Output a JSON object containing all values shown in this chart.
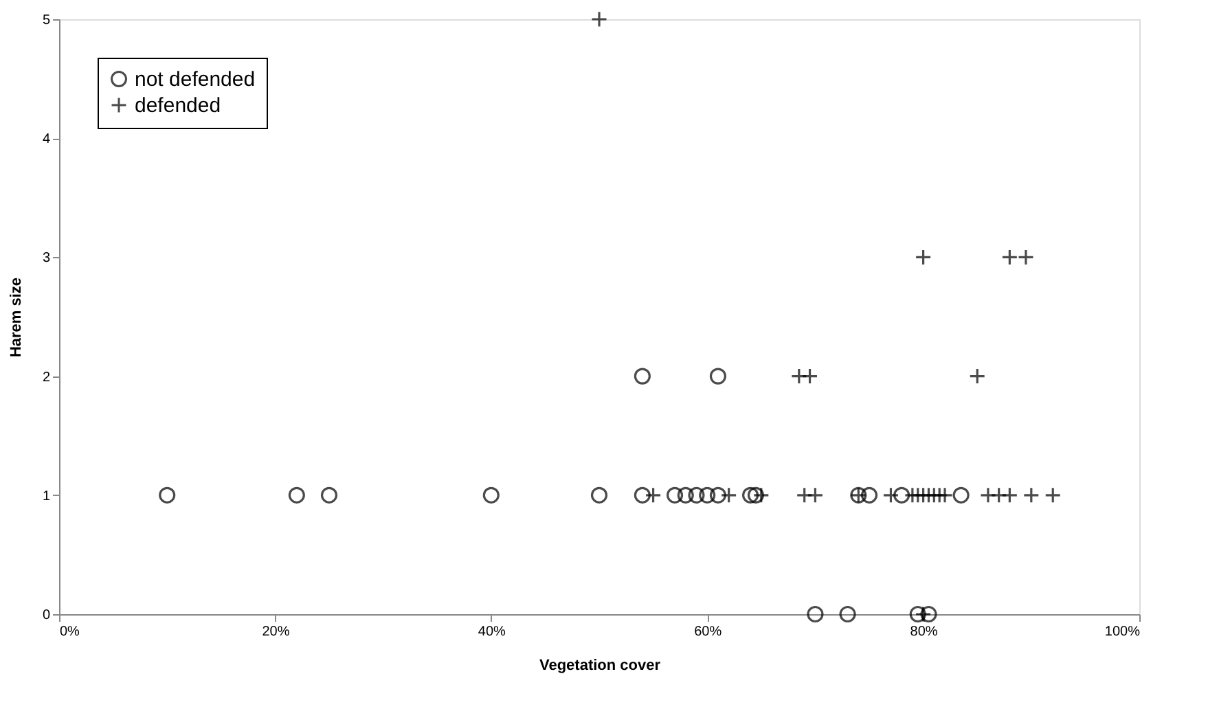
{
  "chart_data": {
    "type": "scatter",
    "xlabel": "Vegetation cover",
    "ylabel": "Harem size",
    "xlim": [
      0,
      100
    ],
    "xticks": [
      {
        "value": 0,
        "label": "0%"
      },
      {
        "value": 20,
        "label": "20%"
      },
      {
        "value": 40,
        "label": "40%"
      },
      {
        "value": 60,
        "label": "60%"
      },
      {
        "value": 80,
        "label": "80%"
      },
      {
        "value": 100,
        "label": "100%"
      }
    ],
    "ylim": [
      0,
      5
    ],
    "yticks": [
      0,
      1,
      2,
      3,
      4,
      5
    ],
    "grid": false,
    "legend": "top left",
    "series": [
      {
        "name": "not defended",
        "color": "#000000",
        "marker": "circle",
        "x": [
          10,
          22,
          25,
          40,
          50,
          54,
          57,
          58,
          59,
          60,
          61,
          64,
          64.5,
          74,
          75,
          78,
          83.5,
          54,
          61,
          70,
          73,
          79.5,
          80.5
        ],
        "values": [
          1,
          1,
          1,
          1,
          1,
          1,
          1,
          1,
          1,
          1,
          1,
          1,
          1,
          1,
          1,
          1,
          1,
          2,
          2,
          0,
          0,
          0,
          0
        ]
      },
      {
        "name": "defended",
        "color": "#000000",
        "marker": "cross",
        "x": [
          55,
          62,
          65,
          69,
          70,
          74,
          77,
          79,
          79.5,
          80,
          80.5,
          81,
          81.5,
          82,
          86,
          87,
          88,
          90,
          92,
          68.5,
          69.5,
          85,
          80,
          88,
          89.5,
          50,
          80
        ],
        "values": [
          1,
          1,
          1,
          1,
          1,
          1,
          1,
          1,
          1,
          1,
          1,
          1,
          1,
          1,
          1,
          1,
          1,
          1,
          1,
          2,
          2,
          2,
          3,
          3,
          3,
          5,
          0
        ]
      }
    ]
  }
}
